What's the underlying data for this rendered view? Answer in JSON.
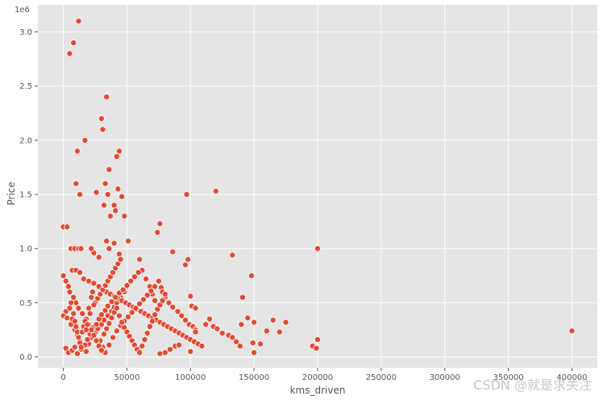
{
  "watermark": "CSDN @就是求关注",
  "chart_data": {
    "type": "scatter",
    "xlabel": "kms_driven",
    "ylabel": "Price",
    "y_offset_label": "1e6",
    "xlim": [
      -20000,
      420000
    ],
    "ylim": [
      -100000,
      3250000
    ],
    "x_ticks": [
      0,
      50000,
      100000,
      150000,
      200000,
      250000,
      300000,
      350000,
      400000
    ],
    "y_ticks": [
      0,
      500000,
      1000000,
      1500000,
      2000000,
      2500000,
      3000000
    ],
    "y_tick_labels": [
      "0.0",
      "0.5",
      "1.0",
      "1.5",
      "2.0",
      "2.5",
      "3.0"
    ],
    "grid": true,
    "colors": {
      "background": "#e5e5e5",
      "grid": "#ffffff",
      "marker": "#e24a33",
      "marker_edge": "#ffffff"
    },
    "points": [
      [
        0,
        1200000
      ],
      [
        3000,
        1200000
      ],
      [
        6000,
        1000000
      ],
      [
        9000,
        1000000
      ],
      [
        12000,
        1000000
      ],
      [
        14000,
        1000000
      ],
      [
        0,
        750000
      ],
      [
        2000,
        700000
      ],
      [
        4000,
        650000
      ],
      [
        5000,
        600000
      ],
      [
        8000,
        550000
      ],
      [
        10000,
        500000
      ],
      [
        12000,
        450000
      ],
      [
        15000,
        400000
      ],
      [
        2000,
        420000
      ],
      [
        0,
        380000
      ],
      [
        3000,
        360000
      ],
      [
        6000,
        300000
      ],
      [
        9000,
        250000
      ],
      [
        11000,
        200000
      ],
      [
        13000,
        150000
      ],
      [
        16000,
        100000
      ],
      [
        18000,
        50000
      ],
      [
        20000,
        120000
      ],
      [
        22000,
        180000
      ],
      [
        25000,
        220000
      ],
      [
        27000,
        260000
      ],
      [
        30000,
        300000
      ],
      [
        32000,
        340000
      ],
      [
        35000,
        380000
      ],
      [
        38000,
        420000
      ],
      [
        40000,
        460000
      ],
      [
        42000,
        500000
      ],
      [
        45000,
        550000
      ],
      [
        48000,
        600000
      ],
      [
        50000,
        650000
      ],
      [
        7000,
        800000
      ],
      [
        10000,
        800000
      ],
      [
        13000,
        780000
      ],
      [
        16000,
        720000
      ],
      [
        20000,
        700000
      ],
      [
        24000,
        680000
      ],
      [
        28000,
        650000
      ],
      [
        31000,
        620000
      ],
      [
        34000,
        600000
      ],
      [
        37000,
        580000
      ],
      [
        40000,
        560000
      ],
      [
        43000,
        540000
      ],
      [
        46000,
        520000
      ],
      [
        49000,
        500000
      ],
      [
        52000,
        480000
      ],
      [
        55000,
        460000
      ],
      [
        58000,
        440000
      ],
      [
        61000,
        420000
      ],
      [
        64000,
        400000
      ],
      [
        67000,
        380000
      ],
      [
        70000,
        360000
      ],
      [
        73000,
        340000
      ],
      [
        76000,
        320000
      ],
      [
        79000,
        300000
      ],
      [
        82000,
        280000
      ],
      [
        85000,
        260000
      ],
      [
        88000,
        240000
      ],
      [
        91000,
        220000
      ],
      [
        94000,
        200000
      ],
      [
        97000,
        180000
      ],
      [
        100000,
        160000
      ],
      [
        103000,
        140000
      ],
      [
        106000,
        120000
      ],
      [
        109000,
        100000
      ],
      [
        5000,
        2800000
      ],
      [
        8000,
        2900000
      ],
      [
        12000,
        3100000
      ],
      [
        11000,
        1900000
      ],
      [
        17000,
        2000000
      ],
      [
        30000,
        2200000
      ],
      [
        31000,
        2100000
      ],
      [
        34000,
        2400000
      ],
      [
        42000,
        1850000
      ],
      [
        44000,
        1900000
      ],
      [
        36000,
        1730000
      ],
      [
        10000,
        1600000
      ],
      [
        13000,
        1500000
      ],
      [
        26000,
        1520000
      ],
      [
        33000,
        1600000
      ],
      [
        35000,
        1500000
      ],
      [
        40000,
        1400000
      ],
      [
        43000,
        1550000
      ],
      [
        46000,
        1480000
      ],
      [
        48000,
        1300000
      ],
      [
        41000,
        1350000
      ],
      [
        37000,
        1300000
      ],
      [
        32000,
        1400000
      ],
      [
        97000,
        1500000
      ],
      [
        120000,
        1530000
      ],
      [
        76000,
        1230000
      ],
      [
        74000,
        1150000
      ],
      [
        34000,
        1070000
      ],
      [
        51000,
        1070000
      ],
      [
        40000,
        1050000
      ],
      [
        86000,
        970000
      ],
      [
        98000,
        900000
      ],
      [
        96000,
        850000
      ],
      [
        133000,
        940000
      ],
      [
        200000,
        1000000
      ],
      [
        148000,
        750000
      ],
      [
        141000,
        550000
      ],
      [
        100000,
        560000
      ],
      [
        80000,
        550000
      ],
      [
        24000,
        960000
      ],
      [
        28000,
        920000
      ],
      [
        22000,
        1000000
      ],
      [
        44000,
        950000
      ],
      [
        36000,
        1000000
      ],
      [
        60000,
        900000
      ],
      [
        62000,
        800000
      ],
      [
        65000,
        720000
      ],
      [
        68000,
        650000
      ],
      [
        70000,
        580000
      ],
      [
        72000,
        520000
      ],
      [
        75000,
        700000
      ],
      [
        77000,
        640000
      ],
      [
        78000,
        600000
      ],
      [
        80000,
        580000
      ],
      [
        83000,
        500000
      ],
      [
        86000,
        460000
      ],
      [
        90000,
        420000
      ],
      [
        93000,
        380000
      ],
      [
        96000,
        340000
      ],
      [
        99000,
        300000
      ],
      [
        102000,
        280000
      ],
      [
        104000,
        250000
      ],
      [
        101000,
        470000
      ],
      [
        104000,
        450000
      ],
      [
        112000,
        300000
      ],
      [
        115000,
        350000
      ],
      [
        118000,
        280000
      ],
      [
        121000,
        260000
      ],
      [
        125000,
        220000
      ],
      [
        130000,
        200000
      ],
      [
        133000,
        180000
      ],
      [
        136000,
        140000
      ],
      [
        139000,
        100000
      ],
      [
        140000,
        300000
      ],
      [
        145000,
        360000
      ],
      [
        150000,
        320000
      ],
      [
        149000,
        130000
      ],
      [
        150000,
        40000
      ],
      [
        155000,
        120000
      ],
      [
        160000,
        240000
      ],
      [
        165000,
        340000
      ],
      [
        170000,
        230000
      ],
      [
        175000,
        320000
      ],
      [
        196000,
        100000
      ],
      [
        199000,
        80000
      ],
      [
        200000,
        160000
      ],
      [
        400000,
        240000
      ],
      [
        100000,
        50000
      ],
      [
        104000,
        230000
      ],
      [
        88000,
        100000
      ],
      [
        91000,
        110000
      ],
      [
        84000,
        70000
      ],
      [
        80000,
        40000
      ],
      [
        76000,
        30000
      ],
      [
        2000,
        80000
      ],
      [
        4000,
        40000
      ],
      [
        7000,
        60000
      ],
      [
        9000,
        90000
      ],
      [
        11000,
        30000
      ],
      [
        14000,
        70000
      ],
      [
        17000,
        110000
      ],
      [
        19000,
        160000
      ],
      [
        21000,
        210000
      ],
      [
        23000,
        270000
      ],
      [
        26000,
        300000
      ],
      [
        28000,
        350000
      ],
      [
        30000,
        390000
      ],
      [
        33000,
        430000
      ],
      [
        35000,
        470000
      ],
      [
        38000,
        510000
      ],
      [
        41000,
        550000
      ],
      [
        44000,
        590000
      ],
      [
        47000,
        620000
      ],
      [
        50000,
        660000
      ],
      [
        53000,
        700000
      ],
      [
        56000,
        740000
      ],
      [
        59000,
        780000
      ],
      [
        29000,
        150000
      ],
      [
        31000,
        90000
      ],
      [
        33000,
        40000
      ],
      [
        36000,
        110000
      ],
      [
        39000,
        180000
      ],
      [
        42000,
        240000
      ],
      [
        45000,
        290000
      ],
      [
        48000,
        330000
      ],
      [
        51000,
        370000
      ],
      [
        54000,
        410000
      ],
      [
        57000,
        450000
      ],
      [
        60000,
        490000
      ],
      [
        63000,
        530000
      ],
      [
        66000,
        570000
      ],
      [
        69000,
        610000
      ],
      [
        72000,
        650000
      ],
      [
        25000,
        500000
      ],
      [
        27000,
        540000
      ],
      [
        29000,
        580000
      ],
      [
        31000,
        620000
      ],
      [
        33000,
        660000
      ],
      [
        35000,
        700000
      ],
      [
        37000,
        740000
      ],
      [
        39000,
        780000
      ],
      [
        41000,
        820000
      ],
      [
        43000,
        860000
      ],
      [
        45000,
        900000
      ],
      [
        18000,
        350000
      ],
      [
        20000,
        300000
      ],
      [
        22000,
        250000
      ],
      [
        24000,
        200000
      ],
      [
        26000,
        150000
      ],
      [
        28000,
        100000
      ],
      [
        30000,
        60000
      ],
      [
        32000,
        210000
      ],
      [
        34000,
        260000
      ],
      [
        36000,
        310000
      ],
      [
        38000,
        360000
      ],
      [
        40000,
        410000
      ],
      [
        42000,
        450000
      ],
      [
        44000,
        380000
      ],
      [
        46000,
        320000
      ],
      [
        48000,
        270000
      ],
      [
        50000,
        230000
      ],
      [
        52000,
        190000
      ],
      [
        54000,
        150000
      ],
      [
        56000,
        110000
      ],
      [
        58000,
        70000
      ],
      [
        60000,
        40000
      ],
      [
        62000,
        100000
      ],
      [
        64000,
        160000
      ],
      [
        66000,
        220000
      ],
      [
        68000,
        280000
      ],
      [
        70000,
        330000
      ],
      [
        72000,
        390000
      ],
      [
        74000,
        440000
      ],
      [
        76000,
        480000
      ],
      [
        78000,
        520000
      ],
      [
        5000,
        450000
      ],
      [
        6000,
        500000
      ],
      [
        7000,
        350000
      ],
      [
        8000,
        400000
      ],
      [
        9000,
        330000
      ],
      [
        10000,
        280000
      ],
      [
        11000,
        230000
      ],
      [
        12000,
        180000
      ],
      [
        13000,
        130000
      ],
      [
        14000,
        90000
      ],
      [
        15000,
        230000
      ],
      [
        16000,
        280000
      ],
      [
        17000,
        330000
      ],
      [
        18000,
        250000
      ],
      [
        19000,
        300000
      ],
      [
        20000,
        450000
      ],
      [
        21000,
        400000
      ],
      [
        22000,
        550000
      ],
      [
        23000,
        600000
      ],
      [
        24000,
        480000
      ]
    ]
  }
}
